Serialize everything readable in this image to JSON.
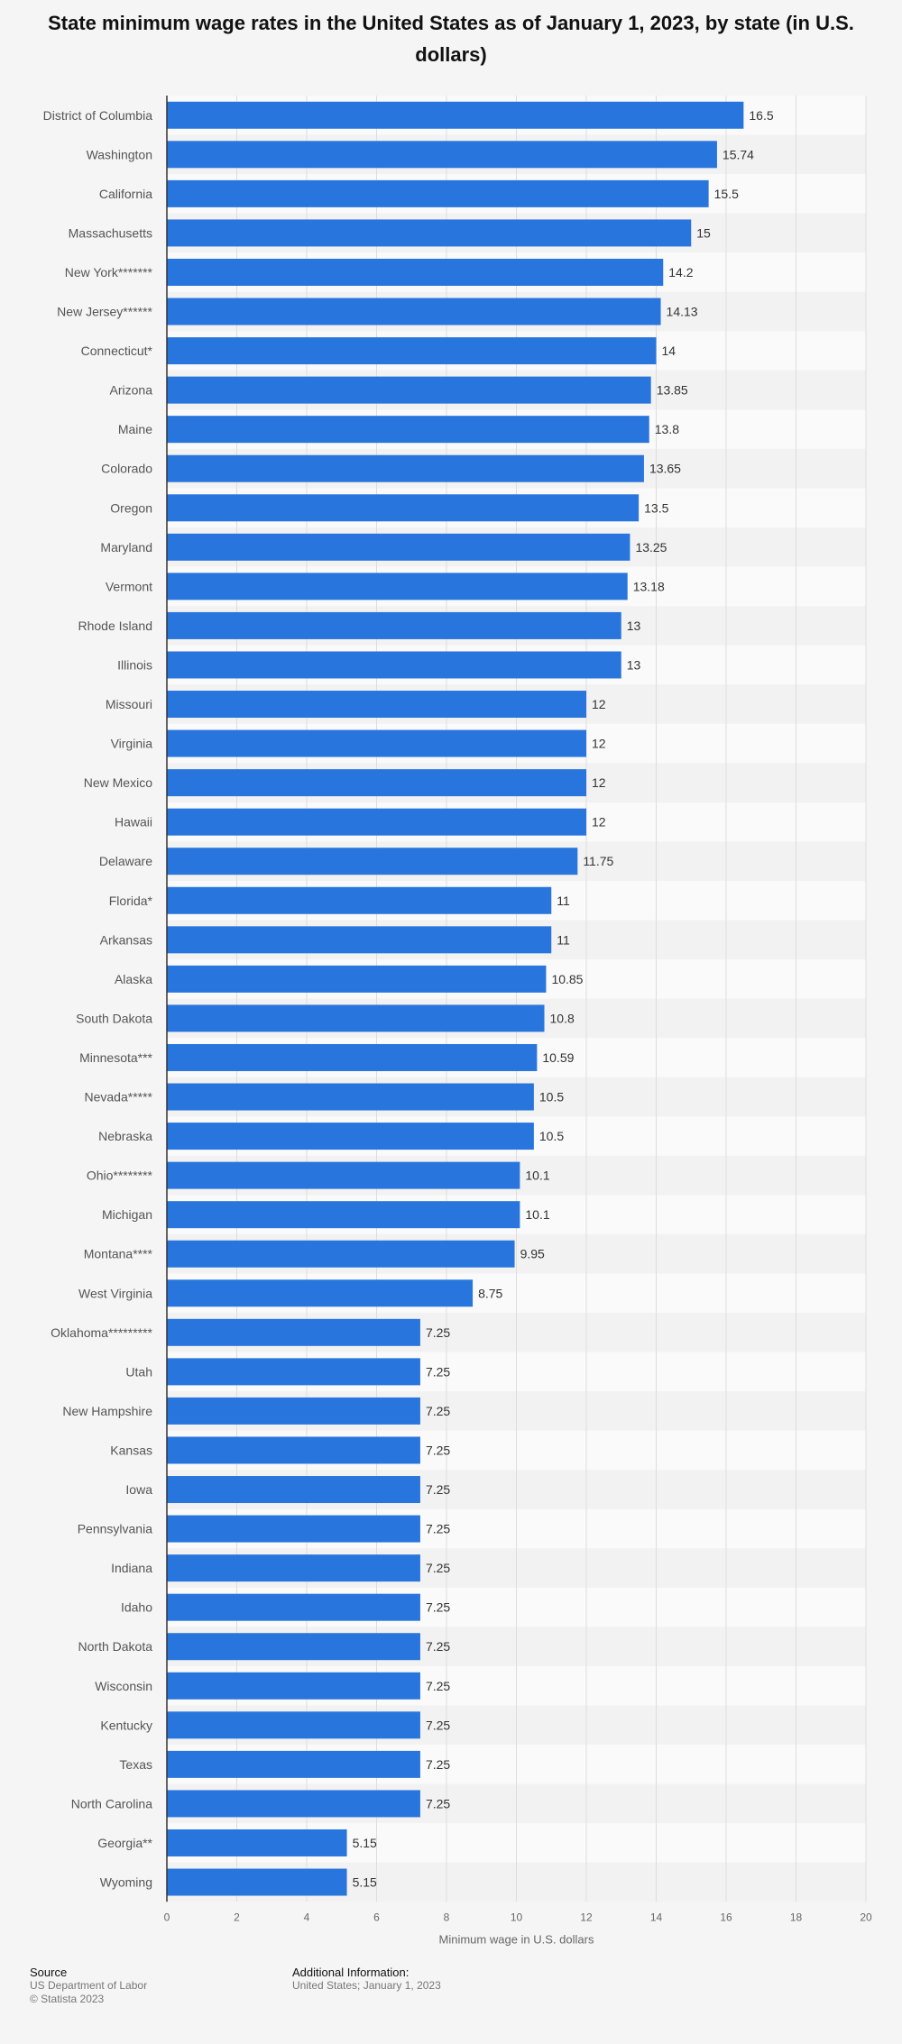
{
  "chart_data": {
    "type": "bar",
    "orientation": "horizontal",
    "title": "State minimum wage rates in the United States as of January 1, 2023, by state (in U.S. dollars)",
    "xlabel": "Minimum wage in U.S. dollars",
    "ylabel": "",
    "xlim": [
      0,
      20
    ],
    "ticks": [
      "0",
      "2",
      "4",
      "6",
      "8",
      "10",
      "12",
      "14",
      "16",
      "18",
      "20"
    ],
    "grid": true,
    "bar_color": "#2876dd",
    "categories": [
      "District of Columbia",
      "Washington",
      "California",
      "Massachusetts",
      "New York*******",
      "New Jersey******",
      "Connecticut*",
      "Arizona",
      "Maine",
      "Colorado",
      "Oregon",
      "Maryland",
      "Vermont",
      "Rhode Island",
      "Illinois",
      "Missouri",
      "Virginia",
      "New Mexico",
      "Hawaii",
      "Delaware",
      "Florida*",
      "Arkansas",
      "Alaska",
      "South Dakota",
      "Minnesota***",
      "Nevada*****",
      "Nebraska",
      "Ohio********",
      "Michigan",
      "Montana****",
      "West Virginia",
      "Oklahoma*********",
      "Utah",
      "New Hampshire",
      "Kansas",
      "Iowa",
      "Pennsylvania",
      "Indiana",
      "Idaho",
      "North Dakota",
      "Wisconsin",
      "Kentucky",
      "Texas",
      "North Carolina",
      "Georgia**",
      "Wyoming"
    ],
    "values": [
      16.5,
      15.74,
      15.5,
      15,
      14.2,
      14.13,
      14,
      13.85,
      13.8,
      13.65,
      13.5,
      13.25,
      13.18,
      13,
      13,
      12,
      12,
      12,
      12,
      11.75,
      11,
      11,
      10.85,
      10.8,
      10.59,
      10.5,
      10.5,
      10.1,
      10.1,
      9.95,
      8.75,
      7.25,
      7.25,
      7.25,
      7.25,
      7.25,
      7.25,
      7.25,
      7.25,
      7.25,
      7.25,
      7.25,
      7.25,
      7.25,
      5.15,
      5.15
    ],
    "value_labels": [
      "16.5",
      "15.74",
      "15.5",
      "15",
      "14.2",
      "14.13",
      "14",
      "13.85",
      "13.8",
      "13.65",
      "13.5",
      "13.25",
      "13.18",
      "13",
      "13",
      "12",
      "12",
      "12",
      "12",
      "11.75",
      "11",
      "11",
      "10.85",
      "10.8",
      "10.59",
      "10.5",
      "10.5",
      "10.1",
      "10.1",
      "9.95",
      "8.75",
      "7.25",
      "7.25",
      "7.25",
      "7.25",
      "7.25",
      "7.25",
      "7.25",
      "7.25",
      "7.25",
      "7.25",
      "7.25",
      "7.25",
      "7.25",
      "5.15",
      "5.15"
    ]
  },
  "footer": {
    "source_heading": "Source",
    "source_lines": [
      "US Department of Labor",
      "© Statista 2023"
    ],
    "info_heading": "Additional Information:",
    "info_lines": [
      "United States; January 1, 2023"
    ]
  }
}
